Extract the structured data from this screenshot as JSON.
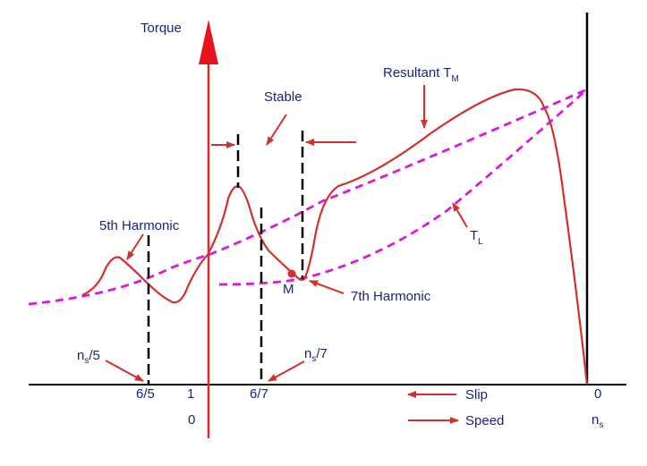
{
  "labels": {
    "torque": "Torque",
    "stable": "Stable",
    "resultant": "Resultant T",
    "resultant_sub": "M",
    "load": "T",
    "load_sub": "L",
    "fifth_harmonic": "5th Harmonic",
    "seventh_harmonic": "7th Harmonic",
    "point_m": "M",
    "ns_over_5_pre": "n",
    "ns_over_5_sub": "s",
    "ns_over_5_post": "/5",
    "ns_over_7_pre": "n",
    "ns_over_7_sub": "s",
    "ns_over_7_post": "/7",
    "tick_6_5": "6/5",
    "tick_1": "1",
    "tick_6_7": "6/7",
    "tick_0_slip": "0",
    "origin_0": "0",
    "ns_pre": "n",
    "ns_sub": "s",
    "slip": "Slip",
    "speed": "Speed"
  },
  "colors": {
    "curve": "#d32f2f",
    "load": "#d81bd8",
    "text": "#1a237e",
    "axis": "#000000"
  }
}
